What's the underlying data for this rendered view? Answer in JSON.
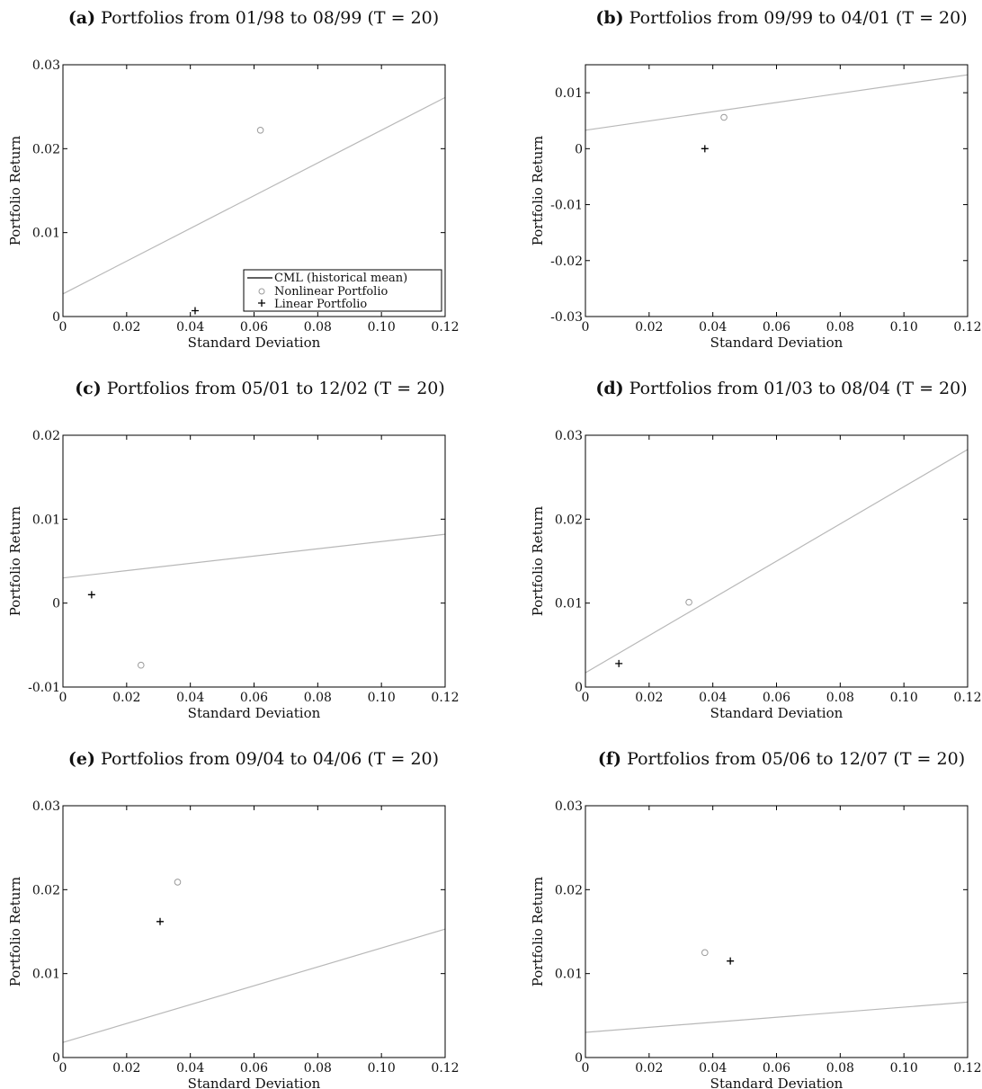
{
  "chart_data": [
    {
      "type": "scatter",
      "panel_letter": "(a)",
      "title": "Portfolios from 01/98 to 08/99 (T = 20)",
      "xlabel": "Standard Deviation",
      "ylabel": "Portfolio Return",
      "xlim": [
        0,
        0.12
      ],
      "ylim": [
        0,
        0.03
      ],
      "xticks": [
        "0",
        "0.02",
        "0.04",
        "0.06",
        "0.08",
        "0.10",
        "0.12"
      ],
      "yticks": [
        "0",
        "0.01",
        "0.02",
        "0.03"
      ],
      "grid": false,
      "legend_position": "bottom-right",
      "legend": [
        "CML (historical mean)",
        "Nonlinear Portfolio",
        "Linear Portfolio"
      ],
      "cml": [
        [
          0,
          0.0027
        ],
        [
          0.12,
          0.0261
        ]
      ],
      "nonlinear": [
        0.062,
        0.0222
      ],
      "linear": [
        0.0415,
        0.0007
      ]
    },
    {
      "type": "scatter",
      "panel_letter": "(b)",
      "title": "Portfolios from 09/99 to 04/01 (T = 20)",
      "xlabel": "Standard Deviation",
      "ylabel": "Portfolio Return",
      "xlim": [
        0,
        0.12
      ],
      "ylim": [
        -0.03,
        0.015
      ],
      "xticks": [
        "0",
        "0.02",
        "0.04",
        "0.06",
        "0.08",
        "0.10",
        "0.12"
      ],
      "yticks": [
        "-0.03",
        "-0.02",
        "-0.01",
        "0",
        "0.01"
      ],
      "grid": false,
      "cml": [
        [
          0,
          0.0033
        ],
        [
          0.12,
          0.0132
        ]
      ],
      "nonlinear": [
        0.0435,
        0.0056
      ],
      "linear": [
        0.0375,
        0.0
      ]
    },
    {
      "type": "scatter",
      "panel_letter": "(c)",
      "title": "Portfolios from 05/01 to 12/02 (T = 20)",
      "xlabel": "Standard Deviation",
      "ylabel": "Portfolio Return",
      "xlim": [
        0,
        0.12
      ],
      "ylim": [
        -0.01,
        0.02
      ],
      "xticks": [
        "0",
        "0.02",
        "0.04",
        "0.06",
        "0.08",
        "0.10",
        "0.12"
      ],
      "yticks": [
        "-0.01",
        "0",
        "0.01",
        "0.02"
      ],
      "grid": false,
      "cml": [
        [
          0,
          0.003
        ],
        [
          0.12,
          0.0082
        ]
      ],
      "nonlinear": [
        0.0245,
        -0.0074
      ],
      "linear": [
        0.009,
        0.001
      ]
    },
    {
      "type": "scatter",
      "panel_letter": "(d)",
      "title": "Portfolios from 01/03 to 08/04 (T = 20)",
      "xlabel": "Standard Deviation",
      "ylabel": "Portfolio Return",
      "xlim": [
        0,
        0.12
      ],
      "ylim": [
        0,
        0.03
      ],
      "xticks": [
        "0",
        "0.02",
        "0.04",
        "0.06",
        "0.08",
        "0.10",
        "0.12"
      ],
      "yticks": [
        "0",
        "0.01",
        "0.02",
        "0.03"
      ],
      "grid": false,
      "cml": [
        [
          0,
          0.0017
        ],
        [
          0.12,
          0.0283
        ]
      ],
      "nonlinear": [
        0.0325,
        0.0101
      ],
      "linear": [
        0.0105,
        0.0028
      ]
    },
    {
      "type": "scatter",
      "panel_letter": "(e)",
      "title": "Portfolios from 09/04 to 04/06 (T = 20)",
      "xlabel": "Standard Deviation",
      "ylabel": "Portfolio Return",
      "xlim": [
        0,
        0.12
      ],
      "ylim": [
        0,
        0.03
      ],
      "xticks": [
        "0",
        "0.02",
        "0.04",
        "0.06",
        "0.08",
        "0.10",
        "0.12"
      ],
      "yticks": [
        "0",
        "0.01",
        "0.02",
        "0.03"
      ],
      "grid": false,
      "cml": [
        [
          0,
          0.0018
        ],
        [
          0.12,
          0.0153
        ]
      ],
      "nonlinear": [
        0.036,
        0.0209
      ],
      "linear": [
        0.0305,
        0.0162
      ]
    },
    {
      "type": "scatter",
      "panel_letter": "(f)",
      "title": "Portfolios from 05/06 to 12/07 (T = 20)",
      "xlabel": "Standard Deviation",
      "ylabel": "Portfolio Return",
      "xlim": [
        0,
        0.12
      ],
      "ylim": [
        0,
        0.03
      ],
      "xticks": [
        "0",
        "0.02",
        "0.04",
        "0.06",
        "0.08",
        "0.10",
        "0.12"
      ],
      "yticks": [
        "0",
        "0.01",
        "0.02",
        "0.03"
      ],
      "grid": false,
      "cml": [
        [
          0,
          0.003
        ],
        [
          0.12,
          0.0066
        ]
      ],
      "nonlinear": [
        0.0375,
        0.0125
      ],
      "linear": [
        0.0455,
        0.0115
      ]
    }
  ],
  "colors": {
    "cml": "#b8b8b8",
    "axes": "#000000",
    "nonlinear_marker": "#9a9a9a",
    "linear_marker": "#000000"
  }
}
